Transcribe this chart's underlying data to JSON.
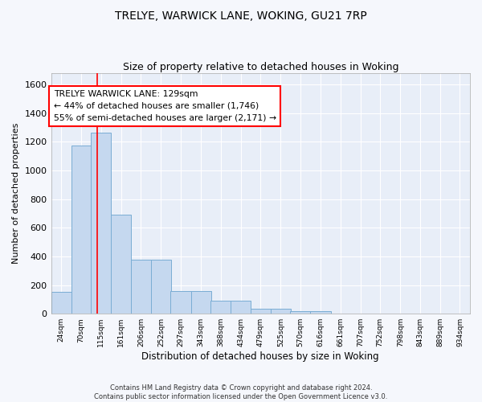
{
  "title_line1": "TRELYE, WARWICK LANE, WOKING, GU21 7RP",
  "title_line2": "Size of property relative to detached houses in Woking",
  "xlabel": "Distribution of detached houses by size in Woking",
  "ylabel": "Number of detached properties",
  "bin_edges": [
    24,
    70,
    115,
    161,
    206,
    252,
    297,
    343,
    388,
    434,
    479,
    525,
    570,
    616,
    661,
    707,
    752,
    798,
    843,
    889,
    934
  ],
  "bar_heights": [
    150,
    1175,
    1265,
    690,
    375,
    375,
    160,
    160,
    90,
    90,
    35,
    35,
    20,
    20,
    0,
    0,
    0,
    0,
    0,
    0
  ],
  "bar_color": "#c5d8ef",
  "bar_edgecolor": "#7aadd4",
  "red_line_x": 129,
  "annotation_title": "TRELYE WARWICK LANE: 129sqm",
  "annotation_line2": "← 44% of detached houses are smaller (1,746)",
  "annotation_line3": "55% of semi-detached houses are larger (2,171) →",
  "ylim": [
    0,
    1680
  ],
  "yticks": [
    0,
    200,
    400,
    600,
    800,
    1000,
    1200,
    1400,
    1600
  ],
  "background_color": "#e8eef8",
  "grid_color": "#ffffff",
  "footer_line1": "Contains HM Land Registry data © Crown copyright and database right 2024.",
  "footer_line2": "Contains public sector information licensed under the Open Government Licence v3.0."
}
